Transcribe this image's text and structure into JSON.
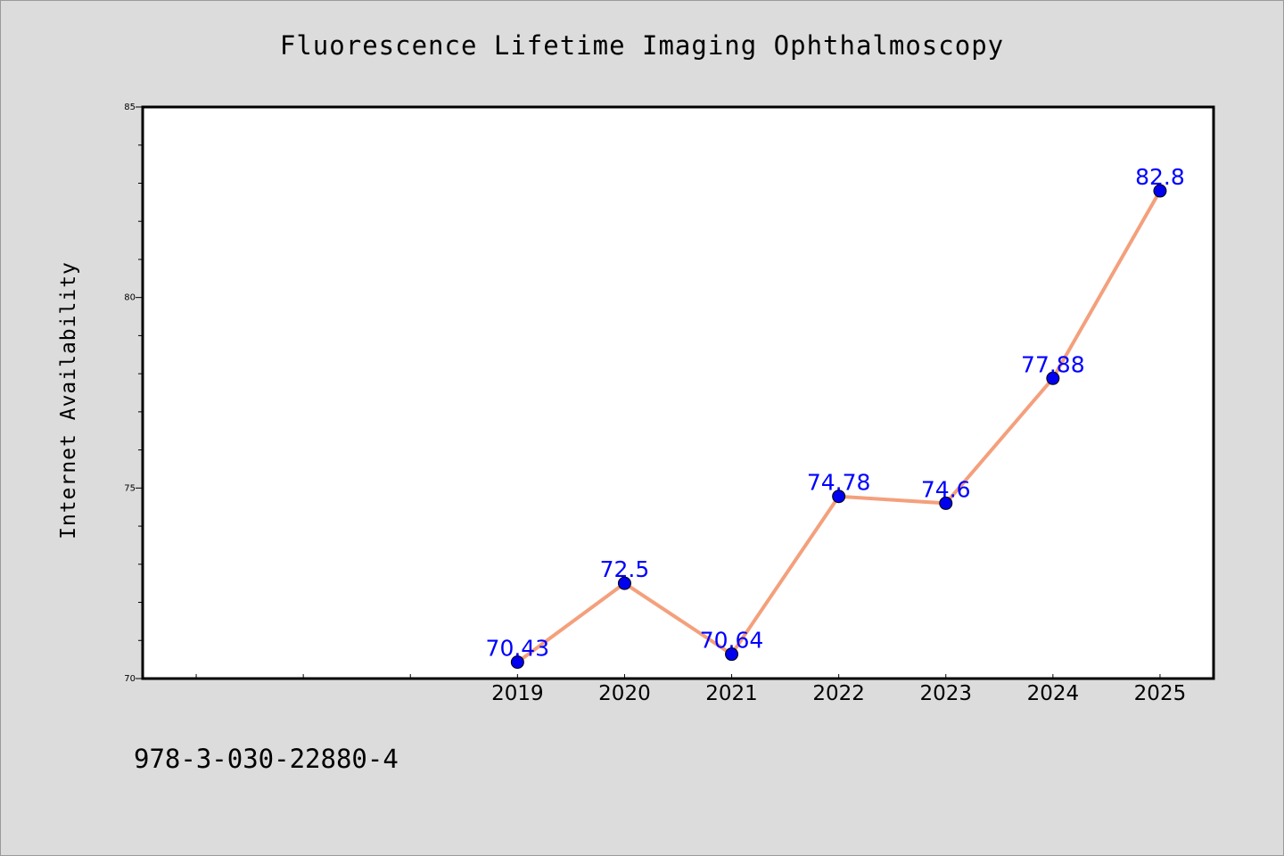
{
  "chart_data": {
    "type": "line",
    "title": "Fluorescence Lifetime Imaging Ophthalmoscopy",
    "xlabel": "",
    "ylabel": "Internet Availability",
    "categories": [
      "2019",
      "2020",
      "2021",
      "2022",
      "2023",
      "2024",
      "2025"
    ],
    "series": [
      {
        "values": [
          70.43,
          72.5,
          70.64,
          74.78,
          74.6,
          77.88,
          82.8
        ],
        "labels": [
          "70.43",
          "72.5",
          "70.64",
          "74.78",
          "74.6",
          "77.88",
          "82.8"
        ],
        "line_color": "#f4a07c",
        "marker_color": "#0000ee",
        "label_color": "#0000ff"
      }
    ],
    "ylim": [
      70,
      85
    ],
    "yticks": [
      "70",
      "75",
      "80",
      "85"
    ],
    "x_slots": 10,
    "first_category_slot": 3,
    "grid": false,
    "legend": "none"
  },
  "footer": {
    "text": "978-3-030-22880-4"
  },
  "colors": {
    "background": "#dcdcdc",
    "plot_area": "#ffffff",
    "axis": "#000000"
  }
}
